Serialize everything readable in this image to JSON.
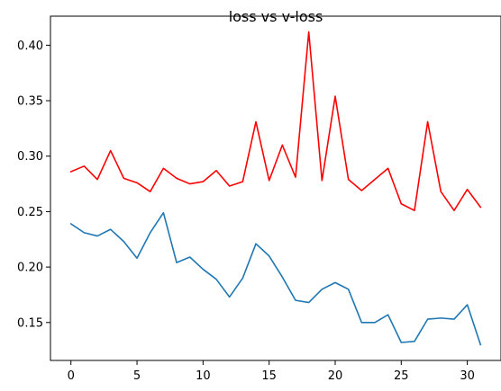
{
  "chart_data": {
    "type": "line",
    "title": "loss vs v-loss",
    "xlabel": "",
    "ylabel": "",
    "xlim": [
      -1.55,
      32.55
    ],
    "ylim": [
      0.1158,
      0.4262
    ],
    "x_ticks": [
      0,
      5,
      10,
      15,
      20,
      25,
      30
    ],
    "x_tick_labels": [
      "0",
      "5",
      "10",
      "15",
      "20",
      "25",
      "30"
    ],
    "y_ticks": [
      0.15,
      0.2,
      0.25,
      0.3,
      0.35,
      0.4
    ],
    "y_tick_labels": [
      "0.15",
      "0.20",
      "0.25",
      "0.30",
      "0.35",
      "0.40"
    ],
    "grid": false,
    "legend": "none",
    "x": [
      0,
      1,
      2,
      3,
      4,
      5,
      6,
      7,
      8,
      9,
      10,
      11,
      12,
      13,
      14,
      15,
      16,
      17,
      18,
      19,
      20,
      21,
      22,
      23,
      24,
      25,
      26,
      27,
      28,
      29,
      30,
      31
    ],
    "series": [
      {
        "color": "#1f77b4",
        "values": [
          0.239,
          0.231,
          0.228,
          0.234,
          0.223,
          0.208,
          0.231,
          0.249,
          0.204,
          0.209,
          0.198,
          0.189,
          0.173,
          0.19,
          0.221,
          0.21,
          0.191,
          0.17,
          0.168,
          0.18,
          0.186,
          0.18,
          0.15,
          0.15,
          0.157,
          0.132,
          0.133,
          0.153,
          0.154,
          0.153,
          0.166,
          0.13
        ]
      },
      {
        "color": "#ff0000",
        "values": [
          0.286,
          0.291,
          0.279,
          0.305,
          0.28,
          0.276,
          0.268,
          0.289,
          0.28,
          0.275,
          0.277,
          0.287,
          0.273,
          0.277,
          0.331,
          0.278,
          0.31,
          0.281,
          0.412,
          0.278,
          0.354,
          0.279,
          0.269,
          0.279,
          0.289,
          0.257,
          0.251,
          0.331,
          0.268,
          0.251,
          0.27,
          0.254
        ]
      }
    ]
  }
}
